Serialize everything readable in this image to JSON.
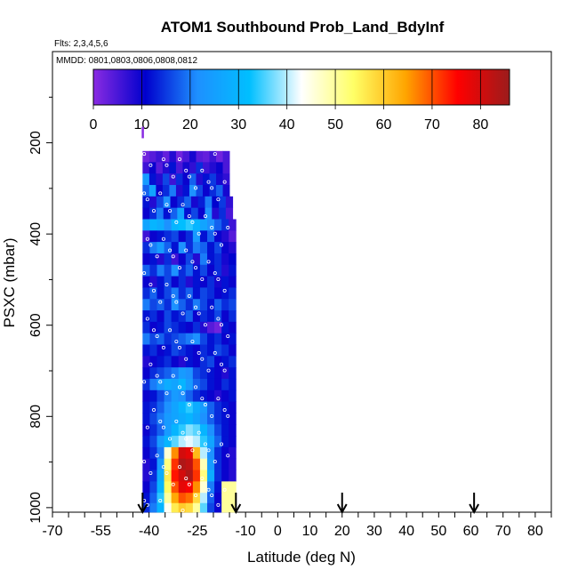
{
  "chart_data": {
    "type": "heatmap",
    "title": "ATOM1 Southbound Prob_Land_BdyInf",
    "flights_note": "Flts: 2,3,4,5,6",
    "dates_note": "MMDD: 0801,0803,0806,0808,0812",
    "xlabel": "Latitude (deg N)",
    "ylabel": "PSXC (mbar)",
    "xlim": [
      -70,
      85
    ],
    "ylim": [
      1010,
      0
    ],
    "x_ticks": [
      -70,
      -55,
      -40,
      -25,
      -10,
      0,
      10,
      20,
      30,
      40,
      50,
      60,
      70,
      80
    ],
    "x_tick_labels": [
      "-70",
      "-55",
      "-40",
      "-25",
      "-10",
      "0",
      "10",
      "20",
      "30",
      "40",
      "50",
      "60",
      "70",
      "80"
    ],
    "y_ticks": [
      200,
      400,
      600,
      800,
      1000
    ],
    "y_tick_labels": [
      "200",
      "400",
      "600",
      "800",
      "1000"
    ],
    "colorbar": {
      "min": 0,
      "max": 86,
      "ticks": [
        0,
        10,
        20,
        30,
        40,
        50,
        60,
        70,
        80
      ],
      "tick_labels": [
        "0",
        "10",
        "20",
        "30",
        "40",
        "50",
        "60",
        "70",
        "80"
      ],
      "colors": [
        "#8a2be2",
        "#0000cd",
        "#1e90ff",
        "#00bfff",
        "#ffffff",
        "#ffff66",
        "#ffa500",
        "#ff0000",
        "#9b1c1c"
      ]
    },
    "arrows_lat": [
      -42,
      -13,
      20,
      61
    ],
    "rows": [
      {
        "p": 230,
        "lat_min": -42,
        "lat_max": -15,
        "values": [
          2,
          4,
          6,
          3,
          8,
          2,
          5,
          9,
          4,
          3,
          6,
          2,
          5
        ]
      },
      {
        "p": 255,
        "lat_min": -42,
        "lat_max": -15,
        "values": [
          6,
          10,
          4,
          8,
          12,
          5,
          9,
          7,
          14,
          6,
          8,
          10,
          5
        ]
      },
      {
        "p": 280,
        "lat_min": -42,
        "lat_max": -15,
        "values": [
          24,
          12,
          8,
          16,
          6,
          14,
          10,
          18,
          8,
          12,
          15,
          9,
          7
        ]
      },
      {
        "p": 305,
        "lat_min": -42,
        "lat_max": -15,
        "values": [
          18,
          26,
          10,
          14,
          20,
          8,
          12,
          22,
          16,
          10,
          14,
          18,
          9
        ]
      },
      {
        "p": 330,
        "lat_min": -42,
        "lat_max": -14,
        "values": [
          12,
          8,
          16,
          22,
          10,
          14,
          18,
          9,
          13,
          20,
          11,
          15,
          7
        ]
      },
      {
        "p": 355,
        "lat_min": -42,
        "lat_max": -14,
        "values": [
          10,
          14,
          20,
          12,
          18,
          26,
          12,
          16,
          10,
          22,
          8,
          14,
          5
        ]
      },
      {
        "p": 380,
        "lat_min": -42,
        "lat_max": -13,
        "values": [
          26,
          30,
          28,
          22,
          30,
          32,
          34,
          30,
          26,
          22,
          18,
          14,
          6
        ]
      },
      {
        "p": 405,
        "lat_min": -42,
        "lat_max": -13,
        "values": [
          6,
          10,
          12,
          14,
          16,
          10,
          14,
          24,
          12,
          18,
          10,
          8,
          4
        ]
      },
      {
        "p": 430,
        "lat_min": -42,
        "lat_max": -13,
        "values": [
          14,
          20,
          24,
          18,
          12,
          22,
          14,
          20,
          18,
          12,
          16,
          10,
          8
        ]
      },
      {
        "p": 455,
        "lat_min": -42,
        "lat_max": -13,
        "values": [
          10,
          12,
          8,
          14,
          6,
          10,
          16,
          8,
          20,
          12,
          14,
          9,
          11
        ]
      },
      {
        "p": 480,
        "lat_min": -42,
        "lat_max": -13,
        "values": [
          18,
          14,
          20,
          16,
          22,
          14,
          18,
          12,
          16,
          10,
          14,
          8,
          12
        ]
      },
      {
        "p": 505,
        "lat_min": -42,
        "lat_max": -13,
        "values": [
          10,
          8,
          12,
          16,
          10,
          14,
          8,
          12,
          10,
          14,
          9,
          12,
          10
        ]
      },
      {
        "p": 530,
        "lat_min": -42,
        "lat_max": -13,
        "values": [
          14,
          18,
          12,
          16,
          20,
          14,
          18,
          12,
          16,
          14,
          10,
          12,
          14
        ]
      },
      {
        "p": 555,
        "lat_min": -42,
        "lat_max": -13,
        "values": [
          20,
          16,
          18,
          14,
          22,
          18,
          14,
          20,
          16,
          12,
          18,
          14,
          16
        ]
      },
      {
        "p": 580,
        "lat_min": -42,
        "lat_max": -13,
        "values": [
          12,
          14,
          10,
          16,
          12,
          14,
          18,
          10,
          14,
          12,
          16,
          10,
          14
        ]
      },
      {
        "p": 605,
        "lat_min": -42,
        "lat_max": -13,
        "values": [
          14,
          10,
          12,
          16,
          14,
          12,
          10,
          14,
          8,
          4,
          2,
          12,
          10
        ]
      },
      {
        "p": 630,
        "lat_min": -42,
        "lat_max": -13,
        "values": [
          20,
          16,
          18,
          14,
          16,
          18,
          20,
          22,
          16,
          12,
          14,
          10,
          12
        ]
      },
      {
        "p": 655,
        "lat_min": -42,
        "lat_max": -13,
        "values": [
          12,
          14,
          10,
          12,
          16,
          14,
          12,
          10,
          14,
          12,
          16,
          14,
          10
        ]
      },
      {
        "p": 680,
        "lat_min": -42,
        "lat_max": -13,
        "values": [
          8,
          10,
          12,
          14,
          10,
          8,
          12,
          10,
          14,
          16,
          10,
          12,
          14
        ]
      },
      {
        "p": 705,
        "lat_min": -42,
        "lat_max": -13,
        "values": [
          10,
          14,
          16,
          18,
          20,
          24,
          22,
          16,
          14,
          12,
          10,
          8,
          12
        ]
      },
      {
        "p": 730,
        "lat_min": -42,
        "lat_max": -13,
        "values": [
          14,
          20,
          24,
          28,
          26,
          30,
          24,
          18,
          16,
          12,
          10,
          14,
          12
        ]
      },
      {
        "p": 755,
        "lat_min": -42,
        "lat_max": -13,
        "values": [
          10,
          12,
          16,
          20,
          24,
          22,
          18,
          14,
          12,
          10,
          8,
          10,
          12
        ]
      },
      {
        "p": 780,
        "lat_min": -42,
        "lat_max": -13,
        "values": [
          12,
          14,
          18,
          22,
          26,
          30,
          34,
          28,
          24,
          18,
          14,
          12,
          10
        ]
      },
      {
        "p": 805,
        "lat_min": -42,
        "lat_max": -13,
        "values": [
          12,
          16,
          20,
          24,
          26,
          28,
          30,
          26,
          22,
          18,
          14,
          12,
          10
        ]
      },
      {
        "p": 830,
        "lat_min": -42,
        "lat_max": -13,
        "values": [
          10,
          14,
          18,
          24,
          30,
          34,
          38,
          36,
          30,
          22,
          16,
          12,
          10
        ]
      },
      {
        "p": 855,
        "lat_min": -42,
        "lat_max": -13,
        "values": [
          12,
          16,
          24,
          30,
          36,
          40,
          42,
          40,
          34,
          26,
          18,
          12,
          10
        ]
      },
      {
        "p": 880,
        "lat_min": -42,
        "lat_max": -13,
        "values": [
          10,
          14,
          20,
          46,
          66,
          80,
          78,
          62,
          40,
          22,
          14,
          10,
          8
        ]
      },
      {
        "p": 905,
        "lat_min": -42,
        "lat_max": -13,
        "values": [
          8,
          12,
          24,
          52,
          72,
          84,
          82,
          70,
          48,
          24,
          14,
          10,
          8
        ]
      },
      {
        "p": 930,
        "lat_min": -42,
        "lat_max": -13,
        "values": [
          8,
          14,
          28,
          56,
          74,
          80,
          84,
          72,
          52,
          28,
          14,
          10,
          8
        ]
      },
      {
        "p": 955,
        "lat_min": -42,
        "lat_max": -13,
        "values": [
          10,
          16,
          30,
          54,
          70,
          78,
          76,
          66,
          46,
          20,
          12,
          50,
          50
        ]
      },
      {
        "p": 980,
        "lat_min": -42,
        "lat_max": -13,
        "values": [
          12,
          18,
          34,
          50,
          64,
          70,
          68,
          58,
          40,
          18,
          10,
          50,
          50
        ]
      },
      {
        "p": 1000,
        "lat_min": -42,
        "lat_max": -13,
        "values": [
          14,
          20,
          30,
          44,
          56,
          60,
          58,
          50,
          36,
          16,
          10,
          50,
          50
        ]
      }
    ]
  }
}
